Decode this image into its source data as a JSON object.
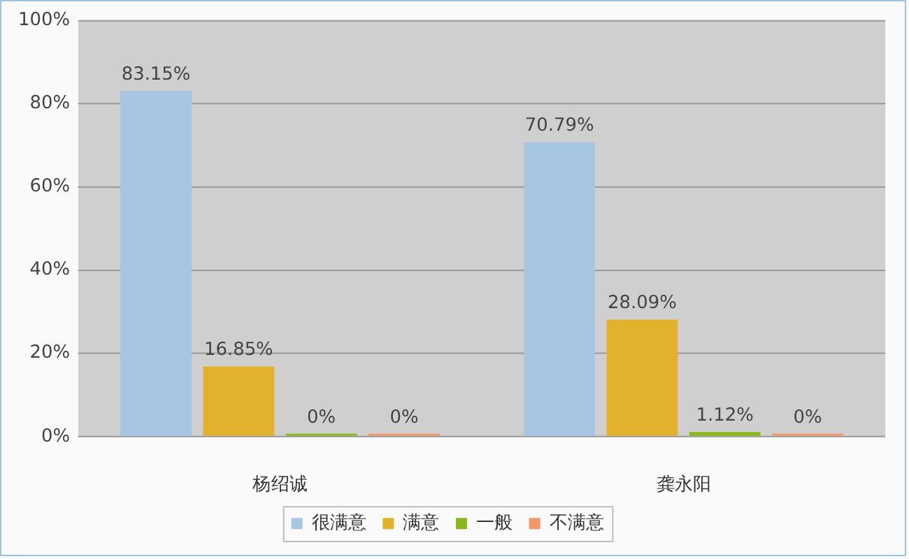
{
  "chart_data": {
    "type": "bar",
    "categories": [
      "杨绍诚",
      "龚永阳"
    ],
    "series": [
      {
        "name": "很满意",
        "color": "#a6c6e4",
        "values": [
          83.15,
          70.79
        ],
        "value_labels": [
          "83.15%",
          "70.79%"
        ]
      },
      {
        "name": "满意",
        "color": "#e2b22c",
        "values": [
          16.85,
          28.09
        ],
        "value_labels": [
          "16.85%",
          "28.09%"
        ]
      },
      {
        "name": "一般",
        "color": "#88b81c",
        "values": [
          0,
          1.12
        ],
        "value_labels": [
          "0%",
          "1.12%"
        ]
      },
      {
        "name": "不满意",
        "color": "#f0986a",
        "values": [
          0,
          0
        ],
        "value_labels": [
          "0%",
          "0%"
        ]
      }
    ],
    "ylim": [
      0,
      100
    ],
    "yticks": [
      {
        "value": 0,
        "label": "0%"
      },
      {
        "value": 20,
        "label": "20%"
      },
      {
        "value": 40,
        "label": "40%"
      },
      {
        "value": 60,
        "label": "60%"
      },
      {
        "value": 80,
        "label": "80%"
      },
      {
        "value": 100,
        "label": "100%"
      }
    ],
    "grid": "y",
    "legend": "bottom"
  }
}
